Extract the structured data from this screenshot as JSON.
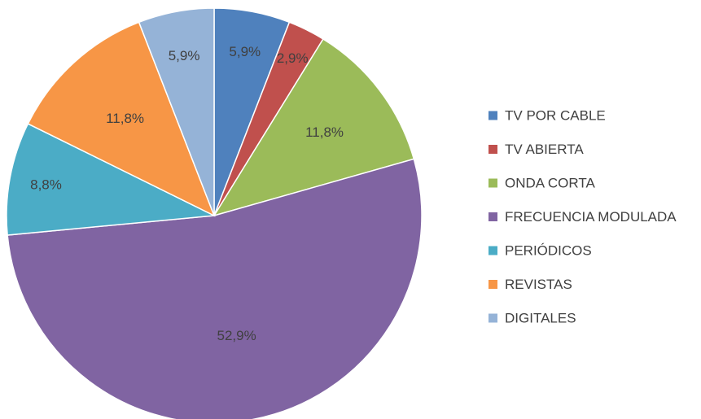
{
  "chart_data": {
    "type": "pie",
    "title": "",
    "start_angle_deg": 0,
    "direction": "clockwise",
    "legend_position": "right",
    "slices": [
      {
        "label": "TV POR CABLE",
        "value": 5.9,
        "value_label": "5,9%",
        "color": "#4f81bd"
      },
      {
        "label": "TV ABIERTA",
        "value": 2.9,
        "value_label": "2,9%",
        "color": "#c0504d"
      },
      {
        "label": "ONDA CORTA",
        "value": 11.8,
        "value_label": "11,8%",
        "color": "#9bbb59"
      },
      {
        "label": "FRECUENCIA MODULADA",
        "value": 52.9,
        "value_label": "52,9%",
        "color": "#8064a2"
      },
      {
        "label": "PERIÓDICOS",
        "value": 8.8,
        "value_label": "8,8%",
        "color": "#4bacc6"
      },
      {
        "label": "REVISTAS",
        "value": 11.8,
        "value_label": "11,8%",
        "color": "#f79646"
      },
      {
        "label": "DIGITALES",
        "value": 5.9,
        "value_label": "5,9%",
        "color": "#95b3d7"
      }
    ]
  }
}
